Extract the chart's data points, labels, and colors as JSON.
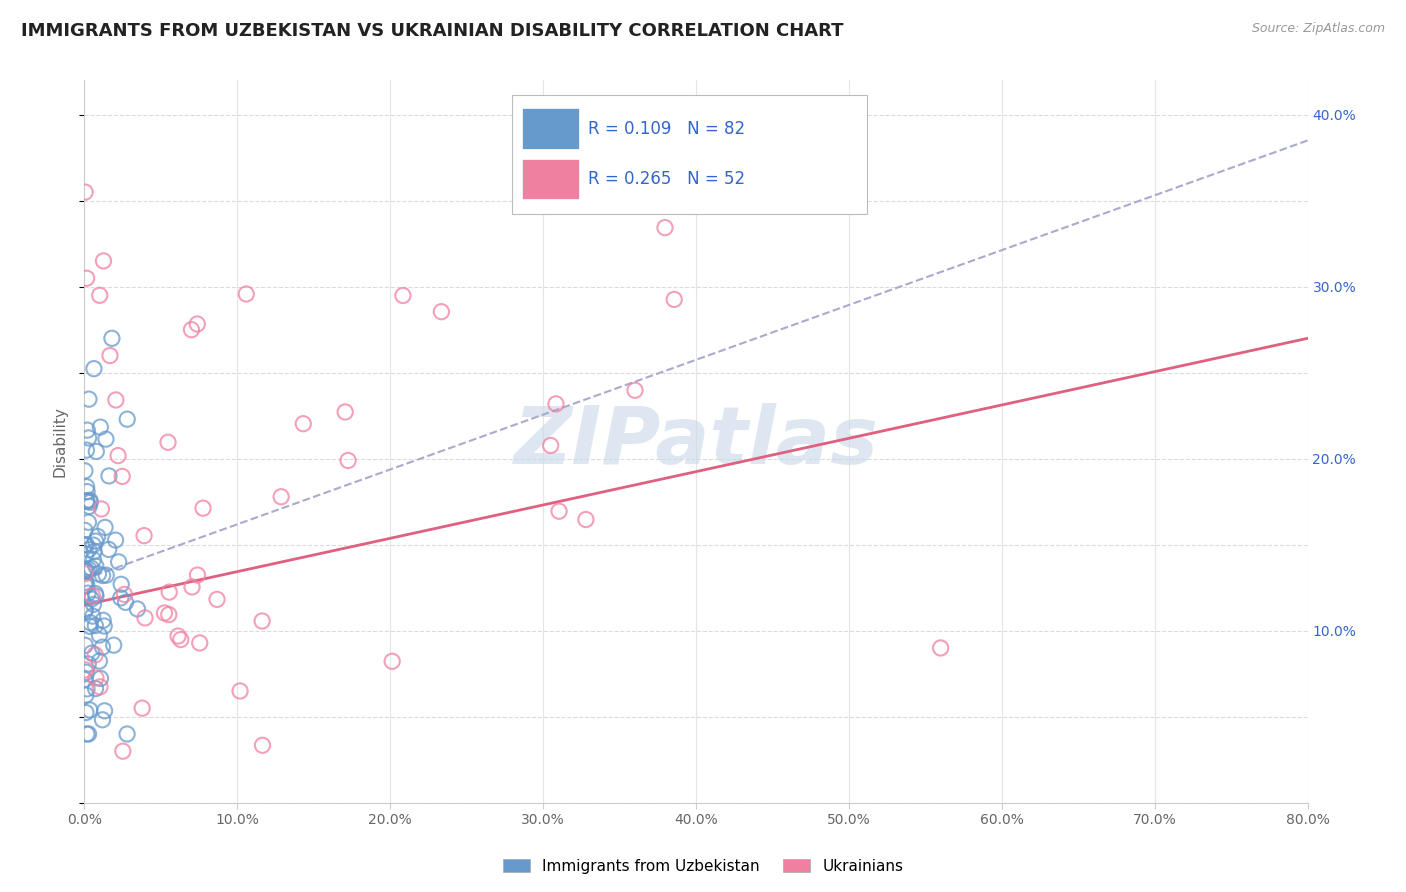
{
  "title": "IMMIGRANTS FROM UZBEKISTAN VS UKRAINIAN DISABILITY CORRELATION CHART",
  "source": "Source: ZipAtlas.com",
  "ylabel": "Disability",
  "legend_labels": [
    "Immigrants from Uzbekistan",
    "Ukrainians"
  ],
  "legend_R": [
    0.109,
    0.265
  ],
  "legend_N": [
    82,
    52
  ],
  "blue_scatter_color": "#6699cc",
  "pink_scatter_color": "#f080a0",
  "blue_line_color": "#aaaacc",
  "pink_line_color": "#e06080",
  "legend_R_color": "#3366cc",
  "background_color": "#ffffff",
  "grid_color": "#cccccc",
  "title_color": "#222222",
  "axis_label_color": "#666666",
  "watermark_color": "#c8d8e8",
  "xmin": 0.0,
  "xmax": 0.8,
  "ymin": 0.0,
  "ymax": 0.42,
  "xtick_vals": [
    0.0,
    0.1,
    0.2,
    0.3,
    0.4,
    0.5,
    0.6,
    0.7,
    0.8
  ],
  "xtick_labels": [
    "0.0%",
    "10.0%",
    "20.0%",
    "30.0%",
    "40.0%",
    "50.0%",
    "60.0%",
    "70.0%",
    "80.0%"
  ],
  "ytick_right_vals": [
    0.1,
    0.2,
    0.3,
    0.4
  ],
  "ytick_right_labels": [
    "10.0%",
    "20.0%",
    "30.0%",
    "40.0%"
  ],
  "blue_seed": 42,
  "pink_seed": 99
}
